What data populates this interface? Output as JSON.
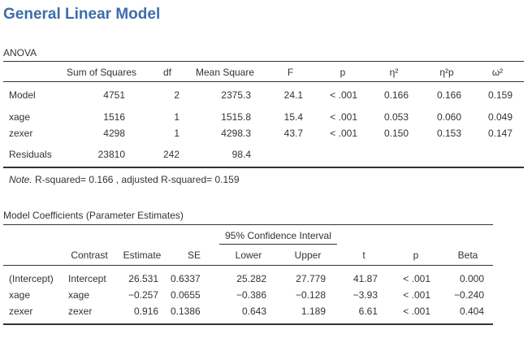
{
  "title": "General Linear Model",
  "anova": {
    "caption": "ANOVA",
    "headers": [
      "Sum of Squares",
      "df",
      "Mean Square",
      "F",
      "p",
      "η²",
      "η²p",
      "ω²"
    ],
    "rows": [
      {
        "term": "Model",
        "ss": "4751",
        "df": "2",
        "ms": "2375.3",
        "f": "24.1",
        "p": "< .001",
        "eta2": "0.166",
        "eta2p": "0.166",
        "omega2": "0.159"
      },
      {
        "term": "xage",
        "ss": "1516",
        "df": "1",
        "ms": "1515.8",
        "f": "15.4",
        "p": "< .001",
        "eta2": "0.053",
        "eta2p": "0.060",
        "omega2": "0.049"
      },
      {
        "term": "zexer",
        "ss": "4298",
        "df": "1",
        "ms": "4298.3",
        "f": "43.7",
        "p": "< .001",
        "eta2": "0.150",
        "eta2p": "0.153",
        "omega2": "0.147"
      },
      {
        "term": "Residuals",
        "ss": "23810",
        "df": "242",
        "ms": "98.4",
        "f": "",
        "p": "",
        "eta2": "",
        "eta2p": "",
        "omega2": ""
      }
    ],
    "note_label": "Note.",
    "note_text": " R-squared= 0.166 , adjusted R-squared= 0.159"
  },
  "coef": {
    "caption": "Model Coefficients (Parameter Estimates)",
    "ci_header": "95% Confidence Interval",
    "headers": [
      "Contrast",
      "Estimate",
      "SE",
      "Lower",
      "Upper",
      "t",
      "p",
      "Beta"
    ],
    "rows": [
      {
        "term": "(Intercept)",
        "contrast": "Intercept",
        "est": "26.531",
        "se": "0.6337",
        "lower": "25.282",
        "upper": "27.779",
        "t": "41.87",
        "p": "< .001",
        "beta": "0.000"
      },
      {
        "term": "xage",
        "contrast": "xage",
        "est": "−0.257",
        "se": "0.0655",
        "lower": "−0.386",
        "upper": "−0.128",
        "t": "−3.93",
        "p": "< .001",
        "beta": "−0.240"
      },
      {
        "term": "zexer",
        "contrast": "zexer",
        "est": "0.916",
        "se": "0.1386",
        "lower": "0.643",
        "upper": "1.189",
        "t": "6.61",
        "p": "< .001",
        "beta": "0.404"
      }
    ]
  }
}
